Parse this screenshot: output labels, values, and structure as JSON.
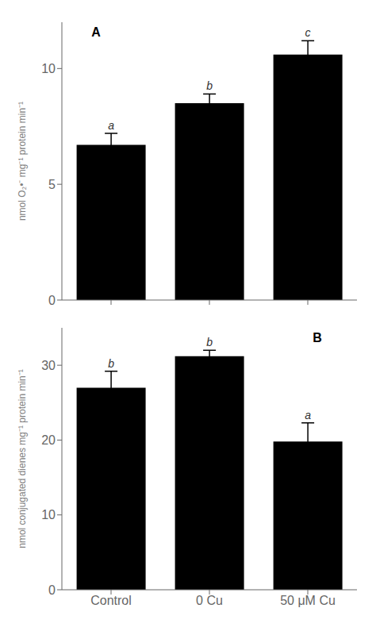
{
  "chart_data": [
    {
      "type": "bar",
      "categories": [
        null,
        null,
        null
      ],
      "values": [
        6.7,
        8.5,
        10.6
      ],
      "errors": [
        0.5,
        0.4,
        0.6
      ],
      "letters": [
        "a",
        "b",
        "c"
      ],
      "ylabel": "nmol O₂•⁻ mg⁻¹ protein min⁻¹",
      "ylim": [
        0,
        12
      ],
      "yticks": [
        0,
        5,
        10
      ],
      "annotations": [
        "A"
      ]
    },
    {
      "type": "bar",
      "categories": [
        "Control",
        "0 Cu",
        "50 μM Cu"
      ],
      "values": [
        27.0,
        31.2,
        19.8
      ],
      "errors": [
        2.2,
        0.8,
        2.5
      ],
      "letters": [
        "b",
        "b",
        "a"
      ],
      "ylabel": "nmol conjugated dienes mg⁻¹ protein min⁻¹",
      "ylim": [
        0,
        35
      ],
      "yticks": [
        0,
        10,
        20,
        30
      ],
      "annotations": [
        "B"
      ]
    }
  ]
}
